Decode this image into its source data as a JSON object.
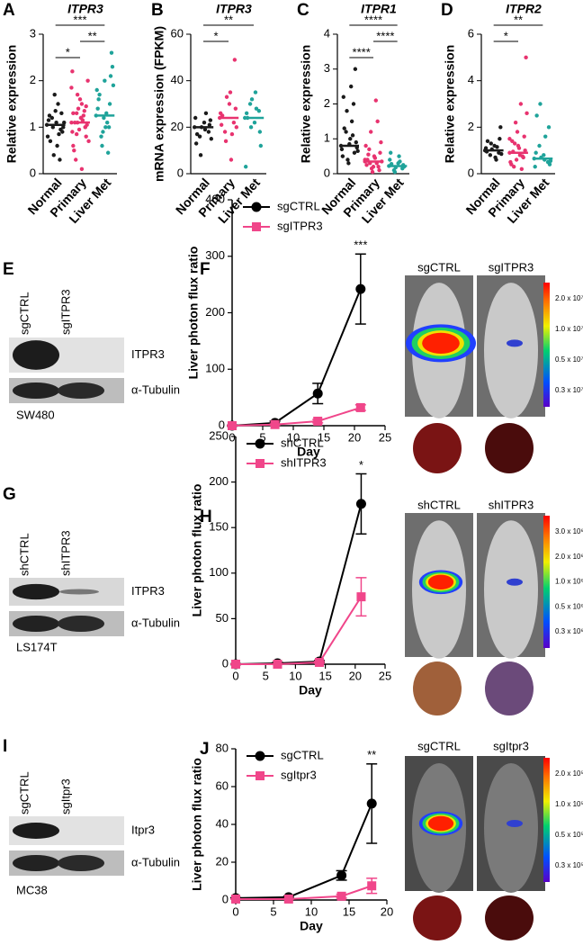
{
  "chart_data": [
    {
      "type": "strip",
      "panel": "A",
      "title": "ITPR3",
      "ylabel": "Relative expression",
      "categories": [
        "Normal",
        "Primary",
        "Liver Met"
      ],
      "colors": [
        "#1a1a1a",
        "#e8336f",
        "#1fa39a"
      ],
      "values": [
        [
          1.05,
          0.95,
          1.1,
          1.2,
          0.8,
          1.3,
          0.6,
          1.0,
          1.15,
          0.9,
          1.5,
          0.4,
          1.25,
          1.0,
          0.85,
          1.7,
          0.7,
          1.1,
          0.3,
          1.35
        ],
        [
          1.1,
          1.0,
          1.2,
          1.3,
          0.9,
          0.8,
          1.5,
          1.7,
          0.6,
          1.05,
          1.15,
          1.4,
          0.5,
          2.0,
          1.25,
          0.95,
          1.1,
          0.7,
          1.35,
          1.6,
          0.3,
          1.85,
          1.0,
          1.2,
          0.85,
          2.2,
          1.45,
          0.1,
          1.1,
          1.3
        ],
        [
          1.25,
          1.5,
          1.0,
          0.8,
          1.8,
          2.1,
          1.3,
          0.6,
          1.4,
          2.6,
          1.1,
          0.9,
          1.6,
          2.3,
          0.45,
          1.2,
          1.7,
          1.9,
          1.0,
          2.0
        ]
      ],
      "medians": [
        1.05,
        1.1,
        1.25
      ],
      "ylim": [
        0,
        3
      ],
      "yticks": [
        0,
        1,
        2,
        3
      ],
      "significance": [
        {
          "label": "*",
          "from": "Normal",
          "to": "Primary"
        },
        {
          "label": "**",
          "from": "Primary",
          "to": "Liver Met"
        },
        {
          "label": "***",
          "from": "Normal",
          "to": "Liver Met"
        }
      ]
    },
    {
      "type": "strip",
      "panel": "B",
      "title": "ITPR3",
      "ylabel": "mRNA expression (FPKM)",
      "categories": [
        "Normal",
        "Primary",
        "Liver Met"
      ],
      "colors": [
        "#1a1a1a",
        "#e8336f",
        "#1fa39a"
      ],
      "values": [
        [
          20,
          18,
          22,
          16,
          24,
          21,
          19,
          8,
          13,
          23,
          26,
          20,
          17,
          15
        ],
        [
          24,
          22,
          30,
          18,
          26,
          49,
          35,
          14,
          21,
          28,
          6,
          33,
          25,
          20,
          17
        ],
        [
          24,
          27,
          22,
          30,
          3,
          18,
          35,
          20,
          26,
          12,
          28,
          32,
          24
        ]
      ],
      "medians": [
        20,
        24,
        24
      ],
      "ylim": [
        0,
        60
      ],
      "yticks": [
        0,
        20,
        40,
        60
      ],
      "significance": [
        {
          "label": "*",
          "from": "Normal",
          "to": "Primary"
        },
        {
          "label": "**",
          "from": "Normal",
          "to": "Liver Met"
        }
      ]
    },
    {
      "type": "strip",
      "panel": "C",
      "title": "ITPR1",
      "ylabel": "Relative expression",
      "categories": [
        "Normal",
        "Primary",
        "Liver Met"
      ],
      "colors": [
        "#1a1a1a",
        "#e8336f",
        "#1fa39a"
      ],
      "values": [
        [
          0.8,
          0.6,
          1.0,
          1.2,
          0.7,
          3.0,
          2.5,
          1.8,
          0.5,
          0.9,
          1.5,
          0.4,
          2.2,
          0.75,
          1.1,
          0.3,
          1.3,
          0.65,
          2.0,
          0.85
        ],
        [
          0.35,
          0.2,
          0.5,
          0.3,
          0.8,
          0.1,
          0.45,
          1.2,
          0.25,
          0.6,
          2.1,
          0.15,
          0.4,
          0.9,
          0.3,
          0.05,
          0.55,
          0.35,
          1.5,
          0.2,
          0.7,
          0.4
        ],
        [
          0.22,
          0.15,
          0.3,
          0.1,
          0.4,
          0.25,
          0.5,
          0.05,
          0.6,
          0.2,
          0.35,
          0.18,
          0.28
        ]
      ],
      "medians": [
        0.8,
        0.35,
        0.22
      ],
      "ylim": [
        0,
        4
      ],
      "yticks": [
        0,
        1,
        2,
        3,
        4
      ],
      "significance": [
        {
          "label": "****",
          "from": "Normal",
          "to": "Primary"
        },
        {
          "label": "****",
          "from": "Primary",
          "to": "Liver Met"
        },
        {
          "label": "****",
          "from": "Normal",
          "to": "Liver Met"
        }
      ]
    },
    {
      "type": "strip",
      "panel": "D",
      "title": "ITPR2",
      "ylabel": "Relative expression",
      "categories": [
        "Normal",
        "Primary",
        "Liver Met"
      ],
      "colors": [
        "#1a1a1a",
        "#e8336f",
        "#1fa39a"
      ],
      "values": [
        [
          1.0,
          0.9,
          1.2,
          0.8,
          1.1,
          1.5,
          0.7,
          1.3,
          0.95,
          2.0,
          0.6,
          1.05,
          1.4,
          0.85,
          1.15
        ],
        [
          0.9,
          0.7,
          1.1,
          1.3,
          0.5,
          1.6,
          0.8,
          2.2,
          0.4,
          1.0,
          3.0,
          0.6,
          1.4,
          5.0,
          0.2,
          1.8,
          0.95,
          2.6,
          0.75,
          1.2,
          0.3,
          1.5
        ],
        [
          0.65,
          0.5,
          0.8,
          1.2,
          0.3,
          2.0,
          0.6,
          3.0,
          0.9,
          0.4,
          1.6,
          0.7,
          2.5,
          0.55
        ]
      ],
      "medians": [
        1.0,
        0.9,
        0.65
      ],
      "ylim": [
        0,
        6
      ],
      "yticks": [
        0,
        2,
        4,
        6
      ],
      "significance": [
        {
          "label": "*",
          "from": "Normal",
          "to": "Primary"
        },
        {
          "label": "**",
          "from": "Normal",
          "to": "Liver Met"
        }
      ]
    },
    {
      "type": "line",
      "panel": "F",
      "xlabel": "Day",
      "ylabel": "Liver photon flux ratio",
      "x": [
        0,
        7,
        14,
        21
      ],
      "xlim": [
        0,
        25
      ],
      "xticks": [
        0,
        5,
        10,
        15,
        20,
        25
      ],
      "ylim": [
        0,
        400
      ],
      "yticks": [
        0,
        100,
        200,
        300,
        400
      ],
      "series": [
        {
          "name": "sgCTRL",
          "color": "#000000",
          "marker": "circle",
          "values": [
            0,
            5,
            57,
            242
          ],
          "errors": [
            0,
            3,
            18,
            62
          ]
        },
        {
          "name": "sgITPR3",
          "color": "#f0468a",
          "marker": "square",
          "values": [
            0,
            2,
            8,
            32
          ],
          "errors": [
            0,
            1,
            3,
            5
          ]
        }
      ],
      "annotations": [
        {
          "text": "***",
          "x": 21
        }
      ]
    },
    {
      "type": "line",
      "panel": "H",
      "xlabel": "Day",
      "ylabel": "Liver photon flux ratio",
      "x": [
        0,
        7,
        14,
        21
      ],
      "xlim": [
        0,
        25
      ],
      "xticks": [
        0,
        5,
        10,
        15,
        20,
        25
      ],
      "ylim": [
        0,
        250
      ],
      "yticks": [
        0,
        50,
        100,
        150,
        200,
        250
      ],
      "series": [
        {
          "name": "shCTRL",
          "color": "#000000",
          "marker": "circle",
          "values": [
            0,
            1,
            3,
            176
          ],
          "errors": [
            0,
            1,
            1,
            33
          ]
        },
        {
          "name": "shITPR3",
          "color": "#f0468a",
          "marker": "square",
          "values": [
            0,
            0,
            2,
            74
          ],
          "errors": [
            0,
            0,
            1,
            21
          ]
        }
      ],
      "annotations": [
        {
          "text": "*",
          "x": 21
        }
      ]
    },
    {
      "type": "line",
      "panel": "J",
      "xlabel": "Day",
      "ylabel": "Liver photon flux ratio",
      "x": [
        0,
        7,
        14,
        18
      ],
      "xlim": [
        0,
        20
      ],
      "xticks": [
        0,
        5,
        10,
        15,
        20
      ],
      "ylim": [
        0,
        80
      ],
      "yticks": [
        0,
        20,
        40,
        60,
        80
      ],
      "series": [
        {
          "name": "sgCTRL",
          "color": "#000000",
          "marker": "circle",
          "values": [
            1,
            1.5,
            13,
            51
          ],
          "errors": [
            0,
            0.5,
            2.5,
            21
          ]
        },
        {
          "name": "sgItpr3",
          "color": "#f0468a",
          "marker": "square",
          "values": [
            0.5,
            0.5,
            2,
            7.5
          ],
          "errors": [
            0,
            0,
            1,
            4
          ]
        }
      ],
      "annotations": [
        {
          "text": "**",
          "x": 18
        }
      ]
    }
  ],
  "blots": [
    {
      "panel": "E",
      "lanes": [
        "sgCTRL",
        "sgITPR3"
      ],
      "bands": [
        "ITPR3",
        "α-Tubulin"
      ],
      "cell_line": "SW480"
    },
    {
      "panel": "G",
      "lanes": [
        "shCTRL",
        "shITPR3"
      ],
      "bands": [
        "ITPR3",
        "α-Tubulin"
      ],
      "cell_line": "LS174T"
    },
    {
      "panel": "I",
      "lanes": [
        "sgCTRL",
        "sgItpr3"
      ],
      "bands": [
        "Itpr3",
        "α-Tubulin"
      ],
      "cell_line": "MC38"
    }
  ],
  "imaging": [
    {
      "labels": [
        "sgCTRL",
        "sgITPR3"
      ],
      "scale": [
        "2.0 x 10⁷",
        "1.0 x 10⁷",
        "0.5 x 10⁷",
        "0.3 x 10⁷"
      ]
    },
    {
      "labels": [
        "shCTRL",
        "shITPR3"
      ],
      "scale": [
        "3.0 x 10⁶",
        "2.0 x 10⁶",
        "1.0 x 10⁶",
        "0.5 x 10⁶",
        "0.3 x 10⁶"
      ]
    },
    {
      "labels": [
        "sgCTRL",
        "sgItpr3"
      ],
      "scale": [
        "2.0 x 10⁵",
        "1.0 x 10⁵",
        "0.5 x 10⁵",
        "0.3 x 10⁵"
      ]
    }
  ]
}
